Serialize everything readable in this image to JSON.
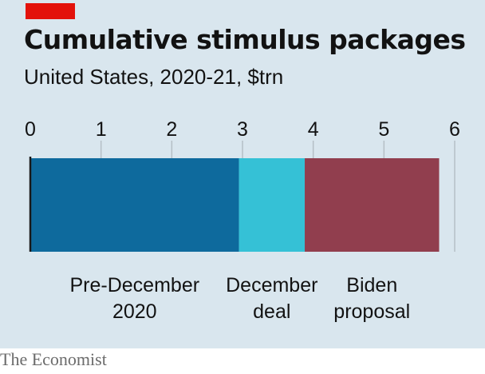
{
  "header": {
    "title": "Cumulative stimulus packages",
    "subtitle": "United States, 2020-21, $trn"
  },
  "footer": {
    "source": "The Economist"
  },
  "colors": {
    "brand_tag": "#e3120b",
    "panel_background": "#d9e6ee",
    "gridline": "#b5bfc6",
    "text": "#121212"
  },
  "chart_data": {
    "type": "bar",
    "orientation": "horizontal",
    "stacked": true,
    "title": "Cumulative stimulus packages",
    "subtitle": "United States, 2020-21, $trn",
    "xlim": [
      0,
      6
    ],
    "x_ticks": [
      "0",
      "1",
      "2",
      "3",
      "4",
      "5",
      "6"
    ],
    "grid": true,
    "series": [
      {
        "name": "Pre-December 2020",
        "label_lines": [
          "Pre-December",
          "2020"
        ],
        "value": 2.95,
        "color": "#0e6a9d"
      },
      {
        "name": "December deal",
        "label_lines": [
          "December",
          "deal"
        ],
        "value": 0.93,
        "color": "#35c1d6"
      },
      {
        "name": "Biden proposal",
        "label_lines": [
          "Biden",
          "proposal"
        ],
        "value": 1.9,
        "color": "#913e4e"
      }
    ]
  }
}
